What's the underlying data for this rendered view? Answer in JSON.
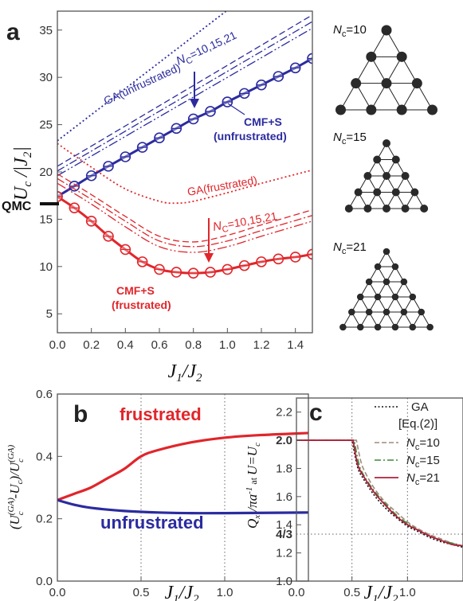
{
  "colors": {
    "blue": "#2b2b9f",
    "red": "#e0262b",
    "black": "#111111",
    "gray_dash": "#a08a7a",
    "green_dashdot": "#3a8a3a",
    "crimson": "#b0203a"
  },
  "panel_a": {
    "label": "a",
    "ylabel": "U_c/|J_2|",
    "xlabel": "J_1/J_2",
    "xlim": [
      0,
      1.5
    ],
    "ylim": [
      3,
      37
    ],
    "xticks": [
      "0.0",
      "0.2",
      "0.4",
      "0.6",
      "0.8",
      "1.0",
      "1.2",
      "1.4"
    ],
    "yticks": [
      "5",
      "10",
      "15",
      "20",
      "25",
      "30",
      "35"
    ],
    "qmc_label": "QMC",
    "qmc_value": 17.4,
    "annotations": {
      "ga_unfrustrated": "GA(unfrustrated)",
      "nc_blue": "N",
      "nc_blue_sub": "C",
      "nc_blue_rest": "=10,15,21",
      "cmf_blue_1": "CMF+S",
      "cmf_blue_2": "(unfrustrated)",
      "ga_frustrated": "GA(frustrated)",
      "nc_red": "N",
      "nc_red_sub": "C",
      "nc_red_rest": "=10,15,21",
      "cmf_red_1": "CMF+S",
      "cmf_red_2": "(frustrated)"
    }
  },
  "clusters": [
    {
      "label_n": "N",
      "label_sub": "c",
      "label_rest": "=10",
      "rows": 4
    },
    {
      "label_n": "N",
      "label_sub": "c",
      "label_rest": "=15",
      "rows": 5
    },
    {
      "label_n": "N",
      "label_sub": "c",
      "label_rest": "=21",
      "rows": 6
    }
  ],
  "panel_b": {
    "label": "b",
    "ylabel": "(U_c^(GA)-U_c)/U_c^(GA)",
    "xlabel": "J_1/J_2",
    "xlim": [
      0,
      1.5
    ],
    "ylim": [
      0,
      0.6
    ],
    "xticks": [
      "0.0",
      "0.5",
      "1.0"
    ],
    "yticks": [
      "0.0",
      "0.2",
      "0.4",
      "0.6"
    ],
    "frustrated_label": "frustrated",
    "unfrustrated_label": "unfrustrated"
  },
  "panel_c": {
    "label": "c",
    "ylabel": "Q_x/πa^-1 at U=U_c",
    "xlabel": "J_1/J_2",
    "xlim": [
      0,
      1.5
    ],
    "ylim": [
      1.0,
      2.3
    ],
    "xticks": [
      "0.0",
      "0.5",
      "1.0"
    ],
    "yticks": [
      "1.0",
      "1.2",
      "1.4",
      "1.6",
      "1.8",
      "2.0",
      "2.2"
    ],
    "special_ticks": [
      "2.0",
      "4/3"
    ],
    "legend": [
      {
        "name": "GA",
        "name2": "[Eq.(2)]"
      },
      {
        "name": "N",
        "sub": "c",
        "rest": "=10"
      },
      {
        "name": "N",
        "sub": "c",
        "rest": "=15"
      },
      {
        "name": "N",
        "sub": "c",
        "rest": "=21"
      }
    ]
  },
  "chart_data": [
    {
      "type": "line",
      "panel": "a",
      "xlabel": "J_1/J_2",
      "ylabel": "U_c/|J_2|",
      "xlim": [
        0,
        1.5
      ],
      "ylim": [
        3,
        37
      ],
      "series": [
        {
          "name": "CMF+S (unfrustrated)",
          "x": [
            0,
            0.1,
            0.2,
            0.3,
            0.4,
            0.5,
            0.6,
            0.7,
            0.8,
            0.9,
            1.0,
            1.1,
            1.2,
            1.3,
            1.4,
            1.5
          ],
          "y": [
            17.4,
            18.5,
            19.6,
            20.6,
            21.6,
            22.6,
            23.6,
            24.6,
            25.6,
            26.4,
            27.4,
            28.3,
            29.2,
            30.1,
            31.0,
            32.0
          ]
        },
        {
          "name": "CMF+S (frustrated)",
          "x": [
            0,
            0.1,
            0.2,
            0.3,
            0.4,
            0.5,
            0.6,
            0.7,
            0.8,
            0.9,
            1.0,
            1.1,
            1.2,
            1.3,
            1.4,
            1.5
          ],
          "y": [
            17.4,
            16.2,
            14.8,
            13.2,
            11.8,
            10.5,
            9.7,
            9.4,
            9.3,
            9.4,
            9.7,
            10.1,
            10.5,
            10.8,
            11.0,
            11.3
          ]
        },
        {
          "name": "GA(unfrustrated)",
          "x": [
            0,
            1.5
          ],
          "y": [
            23.3,
            44
          ]
        },
        {
          "name": "GA(frustrated)",
          "x": [
            0,
            0.2,
            0.4,
            0.6,
            0.7,
            0.8,
            1.0,
            1.2,
            1.5
          ],
          "y": [
            23.0,
            20.5,
            18.2,
            16.9,
            16.7,
            16.9,
            17.8,
            18.8,
            20.2
          ]
        },
        {
          "name": "Nc=10 unfrustrated",
          "x": [
            0,
            1.5
          ],
          "y": [
            20.6,
            36.6
          ]
        },
        {
          "name": "Nc=15 unfrustrated",
          "x": [
            0,
            1.5
          ],
          "y": [
            20.1,
            35.9
          ]
        },
        {
          "name": "Nc=21 unfrustrated",
          "x": [
            0,
            1.5
          ],
          "y": [
            19.6,
            35.2
          ]
        },
        {
          "name": "Nc=10 frustrated",
          "x": [
            0,
            0.2,
            0.4,
            0.6,
            0.8,
            1.0,
            1.2,
            1.5
          ],
          "y": [
            19.8,
            17.6,
            15.3,
            13.2,
            12.6,
            13.3,
            14.4,
            16.0
          ]
        },
        {
          "name": "Nc=15 frustrated",
          "x": [
            0,
            0.2,
            0.4,
            0.6,
            0.8,
            1.0,
            1.2,
            1.5
          ],
          "y": [
            19.3,
            17.1,
            14.8,
            12.7,
            12.1,
            12.7,
            13.8,
            15.4
          ]
        },
        {
          "name": "Nc=21 frustrated",
          "x": [
            0,
            0.2,
            0.4,
            0.6,
            0.8,
            1.0,
            1.2,
            1.5
          ],
          "y": [
            18.8,
            16.6,
            14.2,
            12.1,
            11.5,
            12.1,
            13.2,
            14.8
          ]
        }
      ]
    },
    {
      "type": "line",
      "panel": "b",
      "xlabel": "J_1/J_2",
      "ylabel": "(U_c^(GA)-U_c)/U_c^(GA)",
      "xlim": [
        0,
        1.5
      ],
      "ylim": [
        0,
        0.6
      ],
      "series": [
        {
          "name": "frustrated",
          "x": [
            0,
            0.1,
            0.2,
            0.3,
            0.4,
            0.5,
            0.6,
            0.8,
            1.0,
            1.2,
            1.5
          ],
          "y": [
            0.26,
            0.28,
            0.3,
            0.33,
            0.36,
            0.4,
            0.42,
            0.445,
            0.46,
            0.468,
            0.475
          ]
        },
        {
          "name": "unfrustrated",
          "x": [
            0,
            0.1,
            0.2,
            0.4,
            0.6,
            0.8,
            1.0,
            1.5
          ],
          "y": [
            0.26,
            0.245,
            0.235,
            0.225,
            0.22,
            0.218,
            0.218,
            0.22
          ]
        }
      ]
    },
    {
      "type": "line",
      "panel": "c",
      "xlabel": "J_1/J_2",
      "ylabel": "Q_x/πa^-1 at U=U_c",
      "xlim": [
        0,
        1.5
      ],
      "ylim": [
        1.0,
        2.3
      ],
      "series": [
        {
          "name": "GA [Eq.(2)]",
          "x": [
            0,
            0.5,
            0.55,
            0.6,
            0.7,
            0.8,
            0.9,
            1.0,
            1.1,
            1.2,
            1.3,
            1.4,
            1.5
          ],
          "y": [
            2.0,
            2.0,
            1.81,
            1.73,
            1.61,
            1.52,
            1.45,
            1.39,
            1.35,
            1.31,
            1.28,
            1.26,
            1.24
          ]
        },
        {
          "name": "Nc=10",
          "x": [
            0,
            0.54,
            0.58,
            0.62,
            0.7,
            0.8,
            0.9,
            1.0,
            1.1,
            1.2,
            1.3,
            1.4,
            1.5
          ],
          "y": [
            2.0,
            2.0,
            1.85,
            1.77,
            1.66,
            1.56,
            1.49,
            1.42,
            1.37,
            1.33,
            1.3,
            1.27,
            1.25
          ]
        },
        {
          "name": "Nc=15",
          "x": [
            0,
            0.52,
            0.56,
            0.6,
            0.7,
            0.8,
            0.9,
            1.0,
            1.1,
            1.2,
            1.3,
            1.4,
            1.5
          ],
          "y": [
            2.0,
            2.0,
            1.84,
            1.76,
            1.64,
            1.55,
            1.47,
            1.41,
            1.36,
            1.32,
            1.29,
            1.27,
            1.25
          ]
        },
        {
          "name": "Nc=21",
          "x": [
            0,
            0.51,
            0.55,
            0.6,
            0.7,
            0.8,
            0.9,
            1.0,
            1.1,
            1.2,
            1.3,
            1.4,
            1.5
          ],
          "y": [
            2.0,
            2.0,
            1.83,
            1.75,
            1.63,
            1.54,
            1.46,
            1.4,
            1.36,
            1.32,
            1.29,
            1.26,
            1.25
          ]
        }
      ]
    }
  ]
}
